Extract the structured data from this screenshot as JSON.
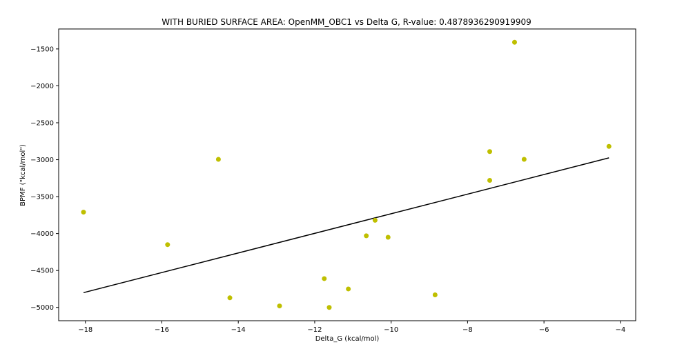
{
  "chart_data": {
    "type": "scatter",
    "title": "WITH BURIED SURFACE AREA: OpenMM_OBC1 vs Delta G, R-value: 0.4878936290919909",
    "xlabel": "Delta_G (kcal/mol)",
    "ylabel": "BPMF (\"kcal/mol\")",
    "xlim": [
      -18.7,
      -3.6
    ],
    "ylim": [
      -5180,
      -1230
    ],
    "xticks": [
      -18,
      -16,
      -14,
      -12,
      -10,
      -8,
      -6,
      -4
    ],
    "xtick_labels": [
      "−18",
      "−16",
      "−14",
      "−12",
      "−10",
      "−8",
      "−6",
      "−4"
    ],
    "yticks": [
      -5000,
      -4500,
      -4000,
      -3500,
      -3000,
      -2500,
      -2000,
      -1500
    ],
    "ytick_labels": [
      "−5000",
      "−4500",
      "−4000",
      "−3500",
      "−3000",
      "−2500",
      "−2000",
      "−1500"
    ],
    "grid": false,
    "points": {
      "color": "#bfbf00",
      "x": [
        -18.05,
        -15.85,
        -14.52,
        -14.22,
        -12.92,
        -11.75,
        -11.62,
        -11.12,
        -10.65,
        -10.42,
        -10.08,
        -8.85,
        -7.42,
        -7.42,
        -6.77,
        -6.52,
        -4.3
      ],
      "y": [
        -3710,
        -4150,
        -2995,
        -4870,
        -4980,
        -4610,
        -5000,
        -4750,
        -4030,
        -3820,
        -4050,
        -4830,
        -2890,
        -3280,
        -1410,
        -2995,
        -2820
      ]
    },
    "fit_line": {
      "color": "#000000",
      "x": [
        -18.05,
        -4.3
      ],
      "y": [
        -4800,
        -2975
      ]
    }
  }
}
